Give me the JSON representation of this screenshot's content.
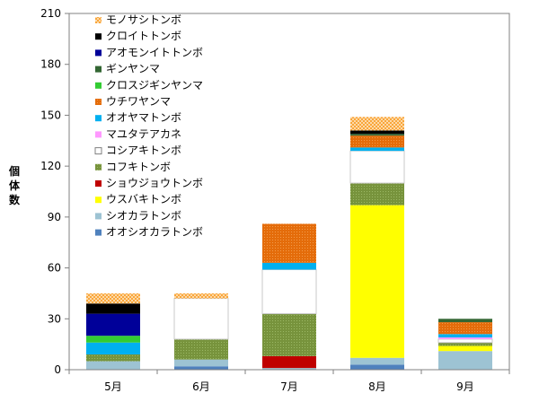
{
  "chart_data": {
    "type": "bar",
    "stacked": true,
    "title": "",
    "xlabel": "",
    "ylabel": "個体数",
    "ylim": [
      0,
      210
    ],
    "yticks": [
      0,
      30,
      60,
      90,
      120,
      150,
      180,
      210
    ],
    "grid": false,
    "legend_position": "top-left inside plot",
    "categories": [
      "5月",
      "6月",
      "7月",
      "8月",
      "9月"
    ],
    "series": [
      {
        "name": "オオシオカラトンボ",
        "color": "#4f81bd",
        "values": [
          0,
          2,
          0,
          3,
          0
        ]
      },
      {
        "name": "シオカラトンボ",
        "color": "#9dc3d3",
        "values": [
          5,
          4,
          1,
          4,
          11
        ]
      },
      {
        "name": "ウスバキトンボ",
        "color": "#ffff00",
        "values": [
          0,
          0,
          0,
          90,
          3
        ]
      },
      {
        "name": "ショウジョウトンボ",
        "color": "#c00000",
        "values": [
          0,
          0,
          7,
          0,
          0
        ]
      },
      {
        "name": "コフキトンボ",
        "color": "#77933c",
        "values": [
          4,
          12,
          25,
          13,
          2
        ]
      },
      {
        "name": "コシアキトンボ",
        "color": "#ffffff",
        "values": [
          0,
          24,
          26,
          19,
          2
        ]
      },
      {
        "name": "マユタテアカネ",
        "color": "#ff99ff",
        "values": [
          0,
          0,
          0,
          0,
          1
        ]
      },
      {
        "name": "オオヤマトンボ",
        "color": "#00b0f0",
        "values": [
          7,
          0,
          4,
          2,
          2
        ]
      },
      {
        "name": "ウチワヤンマ",
        "color": "#e46c0a",
        "values": [
          0,
          0,
          23,
          7,
          7
        ]
      },
      {
        "name": "クロスジギンヤンマ",
        "color": "#33cc33",
        "values": [
          4,
          0,
          0,
          0,
          0
        ]
      },
      {
        "name": "ギンヤンマ",
        "color": "#336633",
        "values": [
          0,
          0,
          0,
          1,
          2
        ]
      },
      {
        "name": "アオモンイトトンボ",
        "color": "#000099",
        "values": [
          13,
          0,
          0,
          0,
          0
        ]
      },
      {
        "name": "クロイトトンボ",
        "color": "#000000",
        "values": [
          6,
          0,
          0,
          2,
          0
        ]
      },
      {
        "name": "モノサシトンボ",
        "color": "#f9a63a",
        "values": [
          6,
          3,
          0,
          8,
          0
        ]
      }
    ]
  }
}
